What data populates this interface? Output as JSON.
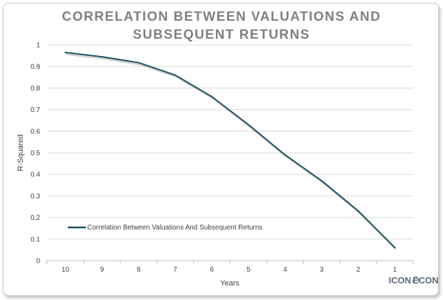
{
  "chart_data": {
    "type": "line",
    "title_lines": [
      "CORRELATION BETWEEN VALUATIONS AND",
      "SUBSEQUENT RETURNS"
    ],
    "xlabel": "Years",
    "ylabel": "R-Squared",
    "categories": [
      "10",
      "9",
      "8",
      "7",
      "6",
      "5",
      "4",
      "3",
      "2",
      "1"
    ],
    "series": [
      {
        "name": "Correlation Between Valuations And Subsequent Returns",
        "values": [
          0.965,
          0.945,
          0.918,
          0.86,
          0.76,
          0.63,
          0.49,
          0.37,
          0.23,
          0.06
        ]
      }
    ],
    "ylim": [
      0,
      1
    ],
    "yticks": [
      0,
      0.1,
      0.2,
      0.3,
      0.4,
      0.5,
      0.6,
      0.7,
      0.8,
      0.9,
      1
    ],
    "grid": true,
    "legend_position": "bottom-left",
    "line_color": "#1f4e5f"
  },
  "logo": {
    "text_left": "ICON",
    "text_right": "ECON"
  }
}
